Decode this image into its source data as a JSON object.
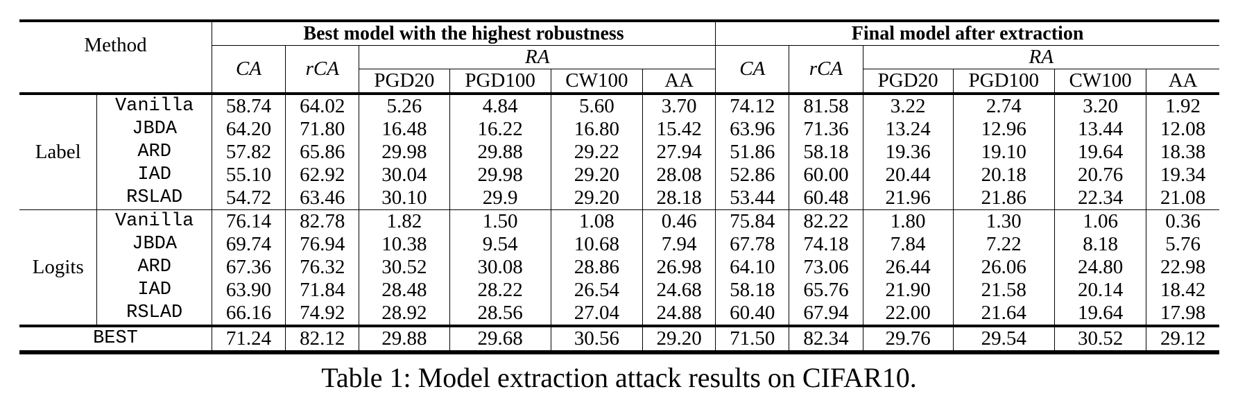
{
  "header": {
    "method": "Method",
    "best_group": "Best model with the highest robustness",
    "final_group": "Final model after extraction",
    "ca": "CA",
    "rca": "rCA",
    "ra": "RA",
    "attacks": [
      "PGD20",
      "PGD100",
      "CW100",
      "AA"
    ]
  },
  "groups": [
    {
      "label": "Label",
      "rows": [
        {
          "method": "Vanilla",
          "values": [
            "58.74",
            "64.02",
            "5.26",
            "4.84",
            "5.60",
            "3.70",
            "74.12",
            "81.58",
            "3.22",
            "2.74",
            "3.20",
            "1.92"
          ]
        },
        {
          "method": "JBDA",
          "values": [
            "64.20",
            "71.80",
            "16.48",
            "16.22",
            "16.80",
            "15.42",
            "63.96",
            "71.36",
            "13.24",
            "12.96",
            "13.44",
            "12.08"
          ]
        },
        {
          "method": "ARD",
          "values": [
            "57.82",
            "65.86",
            "29.98",
            "29.88",
            "29.22",
            "27.94",
            "51.86",
            "58.18",
            "19.36",
            "19.10",
            "19.64",
            "18.38"
          ]
        },
        {
          "method": "IAD",
          "values": [
            "55.10",
            "62.92",
            "30.04",
            "29.98",
            "29.20",
            "28.08",
            "52.86",
            "60.00",
            "20.44",
            "20.18",
            "20.76",
            "19.34"
          ]
        },
        {
          "method": "RSLAD",
          "values": [
            "54.72",
            "63.46",
            "30.10",
            "29.9",
            "29.20",
            "28.18",
            "53.44",
            "60.48",
            "21.96",
            "21.86",
            "22.34",
            "21.08"
          ]
        }
      ]
    },
    {
      "label": "Logits",
      "rows": [
        {
          "method": "Vanilla",
          "values": [
            "76.14",
            "82.78",
            "1.82",
            "1.50",
            "1.08",
            "0.46",
            "75.84",
            "82.22",
            "1.80",
            "1.30",
            "1.06",
            "0.36"
          ]
        },
        {
          "method": "JBDA",
          "values": [
            "69.74",
            "76.94",
            "10.38",
            "9.54",
            "10.68",
            "7.94",
            "67.78",
            "74.18",
            "7.84",
            "7.22",
            "8.18",
            "5.76"
          ]
        },
        {
          "method": "ARD",
          "values": [
            "67.36",
            "76.32",
            "30.52",
            "30.08",
            "28.86",
            "26.98",
            "64.10",
            "73.06",
            "26.44",
            "26.06",
            "24.80",
            "22.98"
          ]
        },
        {
          "method": "IAD",
          "values": [
            "63.90",
            "71.84",
            "28.48",
            "28.22",
            "26.54",
            "24.68",
            "58.18",
            "65.76",
            "21.90",
            "21.58",
            "20.14",
            "18.42"
          ]
        },
        {
          "method": "RSLAD",
          "values": [
            "66.16",
            "74.92",
            "28.92",
            "28.56",
            "27.04",
            "24.88",
            "60.40",
            "67.94",
            "22.00",
            "21.64",
            "19.64",
            "17.98"
          ]
        }
      ]
    }
  ],
  "best": {
    "method": "BEST",
    "values": [
      "71.24",
      "82.12",
      "29.88",
      "29.68",
      "30.56",
      "29.20",
      "71.50",
      "82.34",
      "29.76",
      "29.54",
      "30.52",
      "29.12"
    ]
  },
  "caption": "Table 1: Model extraction attack results on CIFAR10."
}
